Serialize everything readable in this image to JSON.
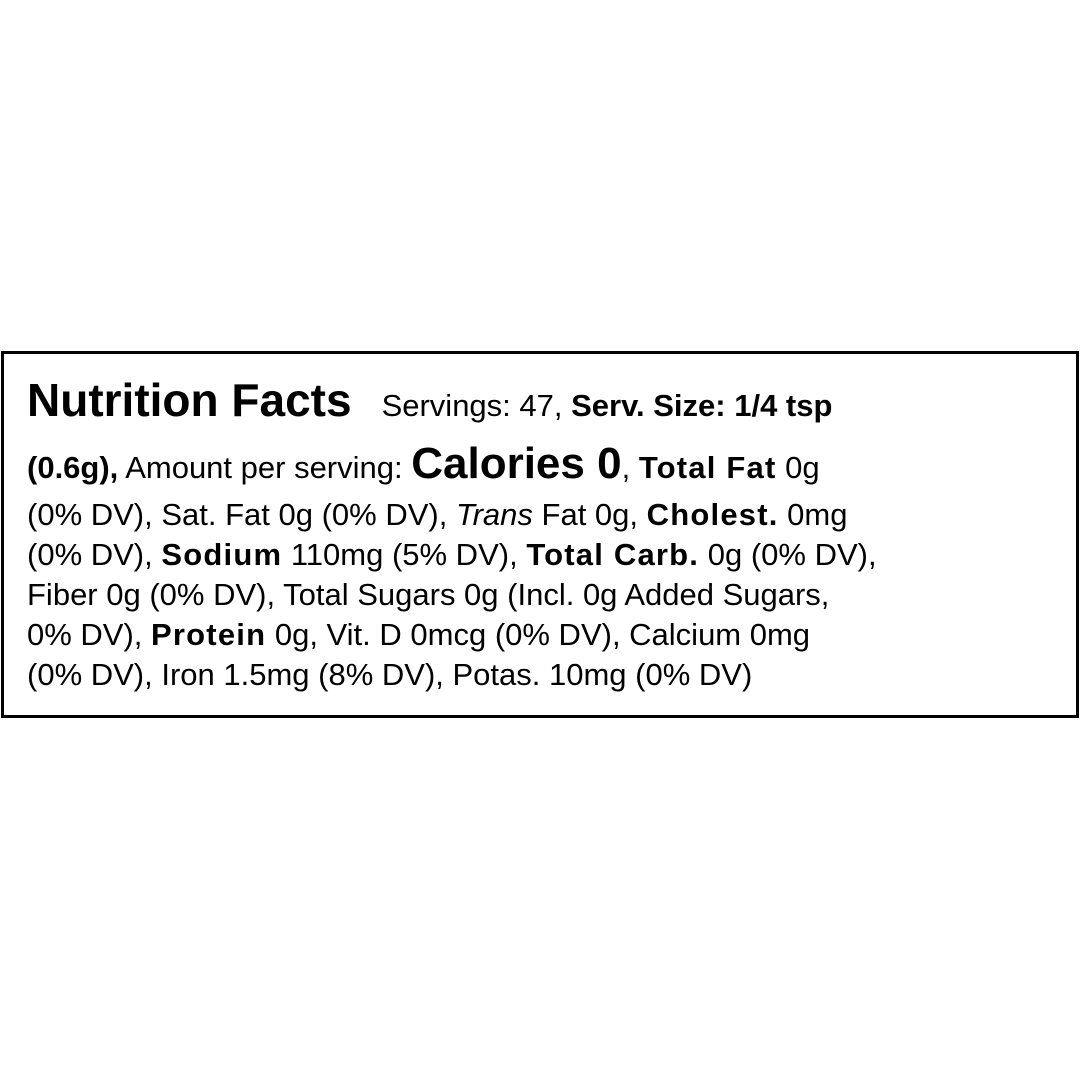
{
  "label": {
    "title": "Nutrition Facts",
    "servings": "Servings: 47, ",
    "serv_size": "Serv. Size: 1/4 tsp",
    "serv_grams": "(0.6g),",
    "amount_per_serving": " Amount per serving: ",
    "calories": "Calories 0",
    "comma1": ", ",
    "total_fat_label": "Total Fat",
    "total_fat_value": " 0g",
    "line3_a": "(0% DV), Sat. Fat 0g (0% DV), ",
    "trans_label": "Trans",
    "line3_b": " Fat 0g, ",
    "cholest_label": "Cholest.",
    "cholest_value": " 0mg",
    "line4_a": "(0% DV), ",
    "sodium_label": "Sodium",
    "sodium_value": " 110mg (5% DV), ",
    "carb_label": "Total Carb.",
    "carb_value": " 0g (0% DV),",
    "line5": "Fiber 0g (0% DV), Total Sugars 0g (Incl. 0g Added Sugars,",
    "line6_a": "0% DV), ",
    "protein_label": "Protein",
    "protein_value": " 0g, Vit. D 0mcg (0% DV), Calcium 0mg",
    "line7": "(0% DV), Iron 1.5mg (8% DV), Potas. 10mg (0% DV)"
  }
}
